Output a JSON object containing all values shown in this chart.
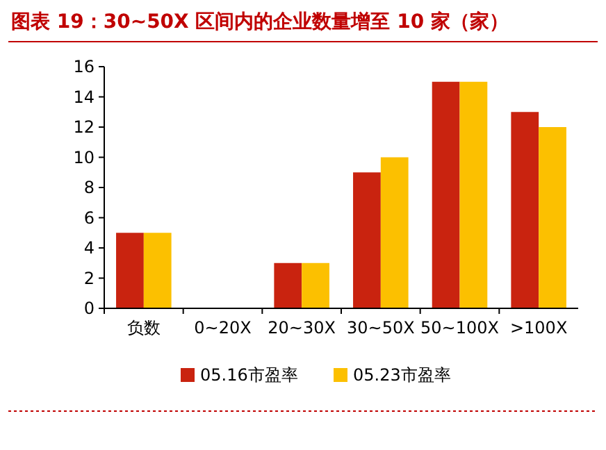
{
  "chart_data": {
    "type": "bar",
    "title": "图表 19：30~50X 区间内的企业数量增至 10 家（家）",
    "categories": [
      "负数",
      "0~20X",
      "20~30X",
      "30~50X",
      "50~100X",
      ">100X"
    ],
    "series": [
      {
        "name": "05.16市盈率",
        "color": "#c9230f",
        "values": [
          5,
          0,
          3,
          9,
          15,
          13
        ]
      },
      {
        "name": "05.23市盈率",
        "color": "#fcc000",
        "values": [
          5,
          0,
          3,
          10,
          15,
          12
        ]
      }
    ],
    "ylim": [
      0,
      16
    ],
    "yticks": [
      0,
      2,
      4,
      6,
      8,
      10,
      12,
      14,
      16
    ],
    "grid": false,
    "legend": "bottom"
  }
}
